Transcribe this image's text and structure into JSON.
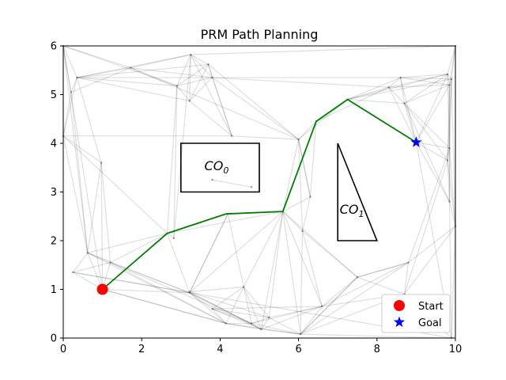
{
  "chart_data": {
    "type": "scatter",
    "title": "PRM Path Planning",
    "xlabel": "",
    "ylabel": "",
    "xlim": [
      0,
      10
    ],
    "ylim": [
      0,
      6
    ],
    "xticks": [
      "0",
      "2",
      "4",
      "6",
      "8",
      "10"
    ],
    "yticks": [
      "0",
      "1",
      "2",
      "3",
      "4",
      "5",
      "6"
    ],
    "obstacles": [
      {
        "name": "CO",
        "subscript": "0",
        "shape": "rectangle",
        "vertices": [
          [
            3,
            3
          ],
          [
            5,
            3
          ],
          [
            5,
            4
          ],
          [
            3,
            4
          ]
        ],
        "label_at": [
          3.6,
          3.45
        ]
      },
      {
        "name": "CO",
        "subscript": "1",
        "shape": "triangle",
        "vertices": [
          [
            7,
            4
          ],
          [
            7,
            2
          ],
          [
            8,
            2
          ]
        ],
        "label_at": [
          7.05,
          2.55
        ]
      }
    ],
    "nodes": [
      [
        1.0,
        1.0
      ],
      [
        0.35,
        5.35
      ],
      [
        0.0,
        6.0
      ],
      [
        0.2,
        5.05
      ],
      [
        0.0,
        4.15
      ],
      [
        0.97,
        3.6
      ],
      [
        0.62,
        1.75
      ],
      [
        0.25,
        1.35
      ],
      [
        1.2,
        1.55
      ],
      [
        1.72,
        5.55
      ],
      [
        2.65,
        2.15
      ],
      [
        2.82,
        2.05
      ],
      [
        2.9,
        5.18
      ],
      [
        3.25,
        5.82
      ],
      [
        3.22,
        4.87
      ],
      [
        3.7,
        5.62
      ],
      [
        3.8,
        5.35
      ],
      [
        4.3,
        4.15
      ],
      [
        3.22,
        0.93
      ],
      [
        3.22,
        0.95
      ],
      [
        3.8,
        0.6
      ],
      [
        4.15,
        0.3
      ],
      [
        4.6,
        1.05
      ],
      [
        4.8,
        0.3
      ],
      [
        5.05,
        0.18
      ],
      [
        5.25,
        0.42
      ],
      [
        4.2,
        2.55
      ],
      [
        5.6,
        2.6
      ],
      [
        6.0,
        4.08
      ],
      [
        6.1,
        2.2
      ],
      [
        6.3,
        2.9
      ],
      [
        6.45,
        4.45
      ],
      [
        6.6,
        0.65
      ],
      [
        6.05,
        0.08
      ],
      [
        7.25,
        4.9
      ],
      [
        7.5,
        1.25
      ],
      [
        8.3,
        5.15
      ],
      [
        8.6,
        5.35
      ],
      [
        8.7,
        4.82
      ],
      [
        8.8,
        1.55
      ],
      [
        8.7,
        0.9
      ],
      [
        9.0,
        4.02
      ],
      [
        9.8,
        5.42
      ],
      [
        9.85,
        5.2
      ],
      [
        9.9,
        5.32
      ],
      [
        9.85,
        3.9
      ],
      [
        9.8,
        3.65
      ],
      [
        9.85,
        2.8
      ],
      [
        10.0,
        2.3
      ],
      [
        10.0,
        6.0
      ],
      [
        9.9,
        0.0
      ],
      [
        3.8,
        3.25
      ],
      [
        4.8,
        3.1
      ]
    ],
    "edges": [
      [
        0,
        6
      ],
      [
        0,
        7
      ],
      [
        0,
        8
      ],
      [
        0,
        18
      ],
      [
        0,
        21
      ],
      [
        0,
        10
      ],
      [
        0,
        2
      ],
      [
        0,
        5
      ],
      [
        1,
        2
      ],
      [
        1,
        3
      ],
      [
        1,
        4
      ],
      [
        1,
        5
      ],
      [
        1,
        9
      ],
      [
        1,
        13
      ],
      [
        1,
        14
      ],
      [
        1,
        12
      ],
      [
        1,
        15
      ],
      [
        1,
        16
      ],
      [
        2,
        3
      ],
      [
        2,
        4
      ],
      [
        2,
        9
      ],
      [
        2,
        6
      ],
      [
        2,
        12
      ],
      [
        3,
        4
      ],
      [
        3,
        6
      ],
      [
        3,
        9
      ],
      [
        4,
        5
      ],
      [
        4,
        6
      ],
      [
        4,
        10
      ],
      [
        4,
        17
      ],
      [
        5,
        6
      ],
      [
        5,
        8
      ],
      [
        6,
        7
      ],
      [
        6,
        8
      ],
      [
        6,
        10
      ],
      [
        6,
        18
      ],
      [
        6,
        21
      ],
      [
        7,
        8
      ],
      [
        7,
        18
      ],
      [
        7,
        50
      ],
      [
        8,
        18
      ],
      [
        8,
        21
      ],
      [
        8,
        10
      ],
      [
        8,
        23
      ],
      [
        9,
        12
      ],
      [
        9,
        16
      ],
      [
        9,
        28
      ],
      [
        9,
        13
      ],
      [
        10,
        11
      ],
      [
        10,
        12
      ],
      [
        10,
        18
      ],
      [
        10,
        27
      ],
      [
        11,
        12
      ],
      [
        11,
        13
      ],
      [
        12,
        13
      ],
      [
        12,
        14
      ],
      [
        12,
        15
      ],
      [
        12,
        16
      ],
      [
        13,
        15
      ],
      [
        13,
        16
      ],
      [
        13,
        14
      ],
      [
        13,
        17
      ],
      [
        13,
        49
      ],
      [
        14,
        16
      ],
      [
        14,
        17
      ],
      [
        14,
        15
      ],
      [
        15,
        16
      ],
      [
        15,
        17
      ],
      [
        15,
        28
      ],
      [
        16,
        17
      ],
      [
        16,
        28
      ],
      [
        16,
        36
      ],
      [
        16,
        37
      ],
      [
        17,
        28
      ],
      [
        18,
        19
      ],
      [
        18,
        20
      ],
      [
        18,
        21
      ],
      [
        18,
        23
      ],
      [
        18,
        24
      ],
      [
        18,
        27
      ],
      [
        18,
        26
      ],
      [
        19,
        22
      ],
      [
        19,
        24
      ],
      [
        19,
        25
      ],
      [
        20,
        21
      ],
      [
        20,
        22
      ],
      [
        20,
        23
      ],
      [
        20,
        24
      ],
      [
        20,
        25
      ],
      [
        20,
        32
      ],
      [
        21,
        22
      ],
      [
        21,
        23
      ],
      [
        21,
        24
      ],
      [
        21,
        33
      ],
      [
        21,
        0
      ],
      [
        22,
        23
      ],
      [
        22,
        24
      ],
      [
        22,
        25
      ],
      [
        22,
        27
      ],
      [
        23,
        24
      ],
      [
        23,
        25
      ],
      [
        23,
        33
      ],
      [
        23,
        32
      ],
      [
        24,
        25
      ],
      [
        24,
        33
      ],
      [
        24,
        32
      ],
      [
        24,
        27
      ],
      [
        25,
        27
      ],
      [
        25,
        32
      ],
      [
        25,
        33
      ],
      [
        26,
        27
      ],
      [
        26,
        10
      ],
      [
        26,
        18
      ],
      [
        26,
        22
      ],
      [
        27,
        29
      ],
      [
        27,
        30
      ],
      [
        27,
        31
      ],
      [
        27,
        28
      ],
      [
        27,
        33
      ],
      [
        27,
        35
      ],
      [
        27,
        32
      ],
      [
        28,
        30
      ],
      [
        28,
        31
      ],
      [
        28,
        34
      ],
      [
        28,
        29
      ],
      [
        29,
        30
      ],
      [
        29,
        35
      ],
      [
        29,
        32
      ],
      [
        29,
        33
      ],
      [
        30,
        31
      ],
      [
        30,
        28
      ],
      [
        31,
        34
      ],
      [
        31,
        36
      ],
      [
        32,
        33
      ],
      [
        32,
        35
      ],
      [
        32,
        39
      ],
      [
        32,
        40
      ],
      [
        33,
        35
      ],
      [
        33,
        40
      ],
      [
        33,
        50
      ],
      [
        33,
        39
      ],
      [
        34,
        36
      ],
      [
        34,
        37
      ],
      [
        34,
        38
      ],
      [
        34,
        41
      ],
      [
        34,
        42
      ],
      [
        34,
        44
      ],
      [
        35,
        39
      ],
      [
        35,
        40
      ],
      [
        35,
        33
      ],
      [
        36,
        37
      ],
      [
        36,
        38
      ],
      [
        36,
        41
      ],
      [
        36,
        42
      ],
      [
        36,
        43
      ],
      [
        37,
        38
      ],
      [
        37,
        41
      ],
      [
        37,
        42
      ],
      [
        37,
        43
      ],
      [
        37,
        44
      ],
      [
        38,
        41
      ],
      [
        38,
        42
      ],
      [
        38,
        43
      ],
      [
        38,
        45
      ],
      [
        38,
        46
      ],
      [
        38,
        47
      ],
      [
        39,
        40
      ],
      [
        39,
        48
      ],
      [
        39,
        45
      ],
      [
        39,
        35
      ],
      [
        40,
        48
      ],
      [
        40,
        50
      ],
      [
        40,
        46
      ],
      [
        41,
        45
      ],
      [
        41,
        46
      ],
      [
        41,
        43
      ],
      [
        41,
        47
      ],
      [
        41,
        42
      ],
      [
        41,
        50
      ],
      [
        42,
        43
      ],
      [
        42,
        44
      ],
      [
        42,
        49
      ],
      [
        42,
        45
      ],
      [
        43,
        44
      ],
      [
        43,
        45
      ],
      [
        43,
        46
      ],
      [
        43,
        49
      ],
      [
        43,
        47
      ],
      [
        44,
        45
      ],
      [
        44,
        49
      ],
      [
        44,
        46
      ],
      [
        44,
        48
      ],
      [
        45,
        46
      ],
      [
        45,
        47
      ],
      [
        45,
        48
      ],
      [
        46,
        47
      ],
      [
        46,
        48
      ],
      [
        47,
        48
      ],
      [
        47,
        50
      ],
      [
        48,
        50
      ],
      [
        48,
        49
      ],
      [
        51,
        52
      ]
    ],
    "path": {
      "name": "path",
      "x": [
        1.0,
        2.65,
        4.15,
        5.6,
        6.45,
        7.25,
        9.0
      ],
      "y": [
        1.0,
        2.15,
        2.55,
        2.6,
        4.45,
        4.9,
        4.02
      ],
      "color": "#008000"
    },
    "series": [
      {
        "name": "Start",
        "x": [
          1.0
        ],
        "y": [
          1.0
        ],
        "marker": "circle",
        "color": "#ff0000"
      },
      {
        "name": "Goal",
        "x": [
          9.0
        ],
        "y": [
          4.02
        ],
        "marker": "star",
        "color": "#0000ff"
      }
    ],
    "legend": {
      "placement": "bottom-right",
      "entries": [
        "Start",
        "Goal"
      ]
    }
  }
}
